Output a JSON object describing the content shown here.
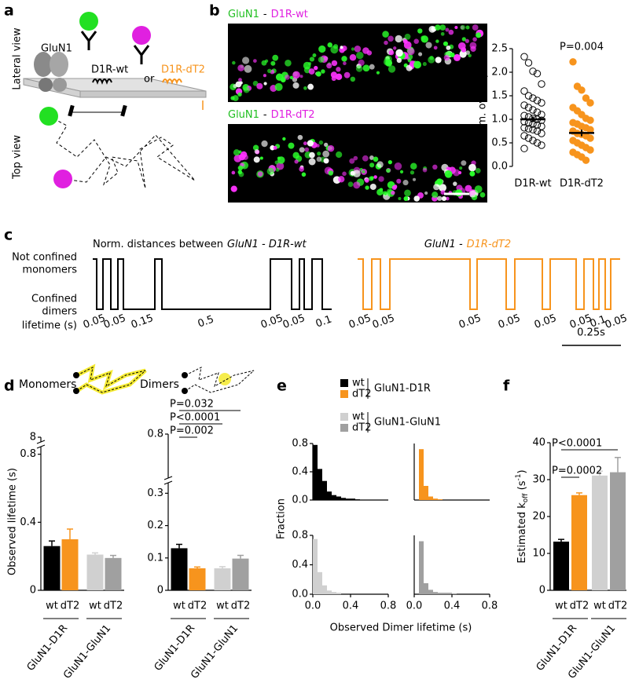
{
  "panel_labels": [
    "a",
    "b",
    "c",
    "d",
    "e",
    "f"
  ],
  "panel_a": {
    "lateral_view": "Lateral view",
    "top_view": "Top view",
    "receptor": "GluN1",
    "wt": "D1R-wt",
    "or": "or",
    "dt2": "D1R-dT2"
  },
  "panel_b": {
    "image_1": {
      "left": "GluN1",
      "sep": "-",
      "right": "D1R-wt"
    },
    "image_2": {
      "left": "GluN1",
      "sep": "-",
      "right": "D1R-dT2"
    }
  },
  "panel_c": {
    "title_prefix": "Norm. distances between",
    "pair_wt": "GluN1 - D1R-wt",
    "pair_dt2_left": "GluN1 -",
    "pair_dt2_right": "D1R-dT2",
    "not_confined": "Not confined",
    "monomers": "monomers",
    "confined": "Confined",
    "dimers": "dimers",
    "lifetime": "lifetime (s)",
    "lifetimes_wt": [
      0.05,
      0.05,
      0.15,
      0.5,
      0.05,
      0.05,
      0.1
    ],
    "lifetimes_dt2": [
      0.05,
      0.05,
      0.05,
      0.05,
      0.05,
      0.05,
      0.1,
      0.05
    ],
    "scale_bar": "0.25s"
  },
  "panel_d": {
    "monomers": "Monomers",
    "dimers": "Dimers"
  },
  "panel_e": {
    "xlabel": "Observed Dimer lifetime (s)",
    "ylabel": "Fraction",
    "legend": [
      {
        "name": "wt",
        "color": "#000000"
      },
      {
        "name": "dT2",
        "color": "#f7941d"
      },
      {
        "name": "wt",
        "color": "#d0d0d0"
      },
      {
        "name": "dT2",
        "color": "#a0a0a0"
      }
    ],
    "legend_groups": [
      "GluN1-D1R",
      "GluN1-GluN1"
    ]
  },
  "chart_data": [
    {
      "type": "strip",
      "ylabel": "Norm. overlap",
      "categories": [
        "D1R-wt",
        "D1R-dT2"
      ],
      "annotation": "P=0.004",
      "ylim": [
        0,
        2.5
      ],
      "yticks": [
        {
          "value": 0,
          "label": "0.0"
        },
        0.5,
        {
          "value": 1,
          "label": "1.0"
        },
        1.5,
        {
          "value": 2,
          "label": "2.0"
        },
        2.5
      ],
      "groups": [
        {
          "color": "#000000",
          "filled": false,
          "mean": 1.0,
          "sem": 0.06,
          "values": [
            2.33,
            2.2,
            2.02,
            1.97,
            1.75,
            1.6,
            1.5,
            1.45,
            1.4,
            1.35,
            1.3,
            1.25,
            1.2,
            1.15,
            1.1,
            1.08,
            1.05,
            1.02,
            1.0,
            0.98,
            0.95,
            0.92,
            0.9,
            0.88,
            0.85,
            0.82,
            0.8,
            0.78,
            0.75,
            0.7,
            0.65,
            0.6,
            0.55,
            0.5,
            0.45,
            0.38
          ]
        },
        {
          "color": "#f7941d",
          "filled": true,
          "mean": 0.71,
          "sem": 0.07,
          "values": [
            2.22,
            1.7,
            1.62,
            1.45,
            1.35,
            1.25,
            1.18,
            1.1,
            1.02,
            0.98,
            0.93,
            0.9,
            0.85,
            0.82,
            0.78,
            0.75,
            0.7,
            0.68,
            0.65,
            0.6,
            0.55,
            0.5,
            0.45,
            0.4,
            0.35,
            0.3,
            0.25,
            0.2,
            0.13
          ]
        }
      ]
    },
    {
      "type": "bar",
      "ylabel": "Observed lifetime (s)",
      "categories": [
        "wt",
        "dT2",
        "wt",
        "dT2"
      ],
      "groups": [
        "GluN1-D1R",
        "GluN1-GluN1"
      ],
      "values": [
        0.26,
        0.3,
        0.21,
        0.19
      ],
      "errors": [
        0.03,
        0.06,
        0.01,
        0.015
      ],
      "colors": [
        "#000000",
        "#f7941d",
        "#d0d0d0",
        "#a0a0a0"
      ],
      "ylim": [
        0,
        8
      ],
      "ybreak": [
        0.84,
        7.8
      ],
      "yticks": [
        0,
        0.4,
        0.8,
        8
      ]
    },
    {
      "type": "bar",
      "categories": [
        "wt",
        "dT2",
        "wt",
        "dT2"
      ],
      "groups": [
        "GluN1-D1R",
        "GluN1-GluN1"
      ],
      "values": [
        0.13,
        0.068,
        0.068,
        0.098
      ],
      "errors": [
        0.012,
        0.004,
        0.005,
        0.01
      ],
      "colors": [
        "#000000",
        "#f7941d",
        "#d0d0d0",
        "#a0a0a0"
      ],
      "ylim": [
        0,
        0.8
      ],
      "ybreak": [
        0.33,
        0.7
      ],
      "yticks": [
        0,
        0.1,
        0.2,
        0.3,
        0.8
      ],
      "annotations": [
        "P=0.032",
        "P<0.0001",
        "P=0.002"
      ]
    },
    {
      "type": "histogram",
      "color": "#000000",
      "bins": [
        0,
        0.05,
        0.1,
        0.15,
        0.2,
        0.25,
        0.3,
        0.35,
        0.4,
        0.45,
        0.5
      ],
      "counts": [
        0.78,
        0.44,
        0.27,
        0.12,
        0.07,
        0.05,
        0.03,
        0.02,
        0.02,
        0.01
      ],
      "xlim": [
        0,
        0.8
      ],
      "ylim": [
        0,
        0.8
      ],
      "yticks": [
        {
          "value": 0,
          "label": "0.0"
        },
        0.4,
        0.8
      ]
    },
    {
      "type": "histogram",
      "color": "#f7941d",
      "bins": [
        0,
        0.05,
        0.1,
        0.15,
        0.2,
        0.25,
        0.3,
        0.35,
        0.4,
        0.45,
        0.5
      ],
      "counts": [
        0,
        0.72,
        0.2,
        0.05,
        0.02,
        0.01,
        0,
        0,
        0,
        0
      ],
      "xlim": [
        0,
        0.8
      ],
      "ylim": [
        0,
        0.8
      ]
    },
    {
      "type": "histogram",
      "color": "#d0d0d0",
      "bins": [
        0,
        0.05,
        0.1,
        0.15,
        0.2,
        0.25,
        0.3,
        0.35,
        0.4,
        0.45,
        0.5
      ],
      "counts": [
        0.75,
        0.3,
        0.12,
        0.05,
        0.03,
        0.02,
        0,
        0,
        0,
        0
      ],
      "xlim": [
        0,
        0.8
      ],
      "ylim": [
        0,
        0.8
      ],
      "xticks": [
        {
          "value": 0,
          "label": "0.0"
        },
        0.4,
        0.8
      ],
      "yticks": [
        {
          "value": 0,
          "label": "0.0"
        },
        0.4,
        0.8
      ]
    },
    {
      "type": "histogram",
      "color": "#a0a0a0",
      "bins": [
        0,
        0.05,
        0.1,
        0.15,
        0.2,
        0.25,
        0.3,
        0.35,
        0.4,
        0.45,
        0.5
      ],
      "counts": [
        0,
        0.72,
        0.15,
        0.06,
        0.03,
        0.02,
        0.02,
        0.02,
        0.01,
        0
      ],
      "xlim": [
        0,
        0.8
      ],
      "ylim": [
        0,
        0.8
      ],
      "xticks": [
        {
          "value": 0,
          "label": "0.0"
        },
        0.4,
        0.8
      ]
    },
    {
      "type": "bar",
      "ylabel_parts": [
        "Estimated k",
        "off",
        " (s",
        "-1",
        ")"
      ],
      "categories": [
        "wt",
        "dT2",
        "wt",
        "dT2"
      ],
      "groups": [
        "GluN1-D1R",
        "GluN1-GluN1"
      ],
      "values": [
        13.2,
        25.8,
        31.1,
        32.0
      ],
      "errors": [
        0.6,
        0.6,
        1.2,
        4.0
      ],
      "colors": [
        "#000000",
        "#f7941d",
        "#d0d0d0",
        "#a0a0a0"
      ],
      "ylim": [
        0,
        40
      ],
      "yticks": [
        0,
        10,
        20,
        30,
        40
      ],
      "annotations": [
        "P<0.0001",
        "P=0.0002"
      ]
    }
  ]
}
